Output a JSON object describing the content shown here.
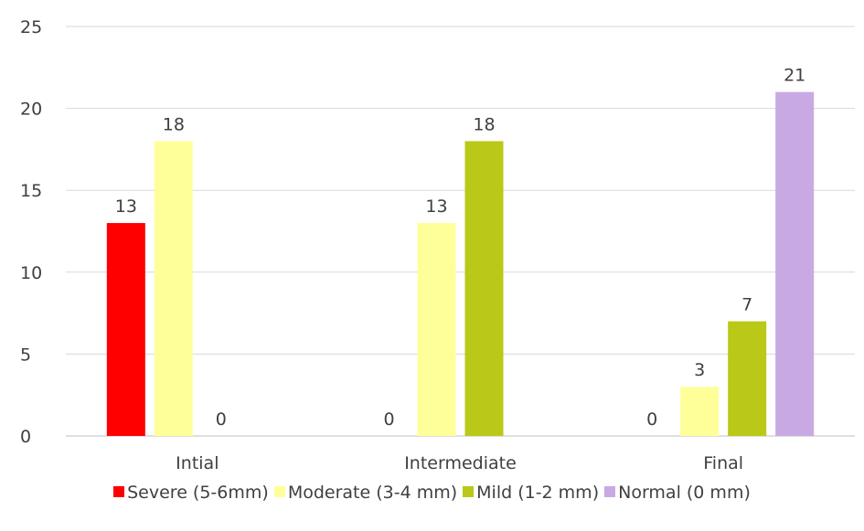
{
  "chart_data": {
    "type": "bar",
    "categories": [
      "Intial",
      "Intermediate",
      "Final"
    ],
    "series": [
      {
        "name": "Severe (5-6mm)",
        "values": [
          13,
          0,
          0
        ],
        "color": "#ff0000"
      },
      {
        "name": "Moderate (3-4 mm)",
        "values": [
          18,
          13,
          3
        ],
        "color": "#ffff99"
      },
      {
        "name": "Mild (1-2 mm)",
        "values": [
          0,
          18,
          7
        ],
        "color": "#bac818"
      },
      {
        "name": "Normal (0 mm)",
        "values": [
          null,
          null,
          21
        ],
        "color": "#c9a9e3"
      }
    ],
    "ylim": [
      0,
      25
    ],
    "yticks": [
      0,
      5,
      10,
      15,
      20,
      25
    ],
    "grid": true,
    "legend_position": "bottom"
  }
}
